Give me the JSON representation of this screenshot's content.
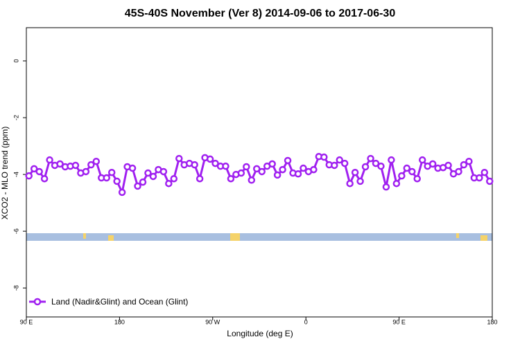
{
  "chart_data": {
    "type": "line",
    "title": "45S-40S November (Ver 8)   2014-09-06 to 2017-06-30",
    "x_label": "Longitude (deg E)",
    "y_label": "XCO2 - MLO trend (ppm)",
    "xlim": [
      90,
      540
    ],
    "xticks": [
      {
        "value": 90,
        "label": "90 E"
      },
      180,
      {
        "value": 270,
        "label": "90 W"
      },
      {
        "value": 360,
        "label": "0"
      },
      {
        "value": 450,
        "label": "90 E"
      },
      {
        "value": 540,
        "label": "180"
      }
    ],
    "ylim": [
      -9.02,
      1.17
    ],
    "yticks": [
      0,
      -2,
      -4,
      -6,
      -8
    ],
    "legend": "bottom left",
    "series": [
      {
        "name": "Land (Nadir&Glint) and Ocean (Glint)",
        "color": "#a020f0",
        "x": [
          92.5,
          97.5,
          102.5,
          107.5,
          112.5,
          117.5,
          122.5,
          127.5,
          132.5,
          137.5,
          142.5,
          147.5,
          152.5,
          157.5,
          162.5,
          167.5,
          172.5,
          177.5,
          182.5,
          187.5,
          192.5,
          197.5,
          202.5,
          207.5,
          212.5,
          217.5,
          222.5,
          227.5,
          232.5,
          237.5,
          242.5,
          247.5,
          252.5,
          257.5,
          262.5,
          267.5,
          272.5,
          277.5,
          282.5,
          287.5,
          292.5,
          297.5,
          302.5,
          307.5,
          312.5,
          317.5,
          322.5,
          327.5,
          332.5,
          337.5,
          342.5,
          347.5,
          352.5,
          357.5,
          362.5,
          367.5,
          372.5,
          377.5,
          382.5,
          387.5,
          392.5,
          397.5,
          402.5,
          407.5,
          412.5,
          417.5,
          422.5,
          427.5,
          432.5,
          437.5,
          442.5,
          447.5,
          452.5,
          457.5,
          462.5,
          467.5,
          472.5,
          477.5,
          482.5,
          487.5,
          492.5,
          497.5,
          502.5,
          507.5,
          512.5,
          517.5,
          522.5,
          527.5,
          532.5,
          537.5
        ],
        "values": [
          -4.05,
          -3.8,
          -3.9,
          -4.15,
          -3.49,
          -3.68,
          -3.63,
          -3.73,
          -3.71,
          -3.68,
          -3.95,
          -3.9,
          -3.66,
          -3.54,
          -4.12,
          -4.12,
          -3.93,
          -4.24,
          -4.63,
          -3.73,
          -3.78,
          -4.41,
          -4.27,
          -3.95,
          -4.07,
          -3.83,
          -3.9,
          -4.32,
          -4.15,
          -3.44,
          -3.66,
          -3.61,
          -3.66,
          -4.15,
          -3.41,
          -3.46,
          -3.61,
          -3.71,
          -3.71,
          -4.15,
          -4.0,
          -3.95,
          -3.73,
          -4.2,
          -3.8,
          -3.9,
          -3.71,
          -3.63,
          -4.02,
          -3.83,
          -3.51,
          -3.95,
          -3.98,
          -3.78,
          -3.9,
          -3.83,
          -3.37,
          -3.39,
          -3.66,
          -3.68,
          -3.49,
          -3.61,
          -4.32,
          -3.93,
          -4.24,
          -3.73,
          -3.44,
          -3.61,
          -3.71,
          -4.44,
          -3.49,
          -4.32,
          -4.05,
          -3.78,
          -3.9,
          -4.15,
          -3.49,
          -3.71,
          -3.63,
          -3.78,
          -3.76,
          -3.68,
          -3.98,
          -3.9,
          -3.66,
          -3.54,
          -4.12,
          -4.12,
          -3.93,
          -4.24
        ]
      }
    ]
  }
}
